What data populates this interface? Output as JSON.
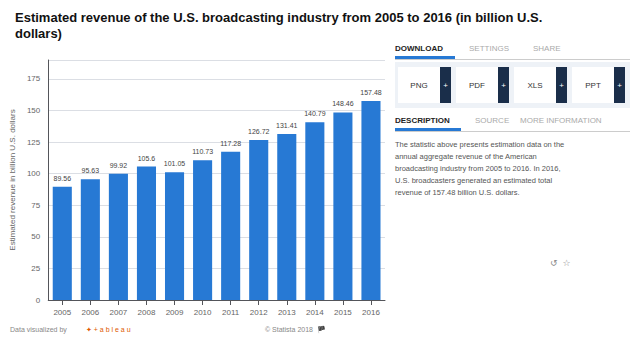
{
  "chart_data": {
    "type": "bar",
    "title": "Estimated revenue of the U.S. broadcasting industry from 2005 to 2016 (in billion U.S.\ndollars)",
    "categories": [
      "2005",
      "2006",
      "2007",
      "2008",
      "2009",
      "2010",
      "2011",
      "2012",
      "2013",
      "2014",
      "2015",
      "2016"
    ],
    "values": [
      89.56,
      95.63,
      99.92,
      105.6,
      101.05,
      110.73,
      117.28,
      126.72,
      131.41,
      140.79,
      148.46,
      157.48
    ],
    "color": "#2779d4",
    "ylabel": "Estimated revenue in billion U.S. dollars",
    "ylim": [
      0,
      190
    ],
    "yticks": [
      0,
      25,
      50,
      75,
      100,
      125,
      150,
      175
    ],
    "grid": true,
    "data_labels": true,
    "annotations": [
      "DOWNLOAD",
      "SETTINGS",
      "SHARE",
      "PNG",
      "PDF",
      "XLS",
      "PPT",
      "+",
      "+",
      "+",
      "+",
      "DESCRIPTION",
      "SOURCE",
      "MORE INFORMATION",
      "The statistic above presents estimation data on the\nannual aggregate revenue of the American\nbroadcasting industry from 2005 to 2016. In 2016,\nU.S. broadcasters generated an estimated total\nrevenue of 157.48 billion U.S. dollars.",
      "↺  ☆",
      "Data visualized by",
      "✦ + a b l e a u",
      "© Statista 2018  🏴"
    ]
  }
}
